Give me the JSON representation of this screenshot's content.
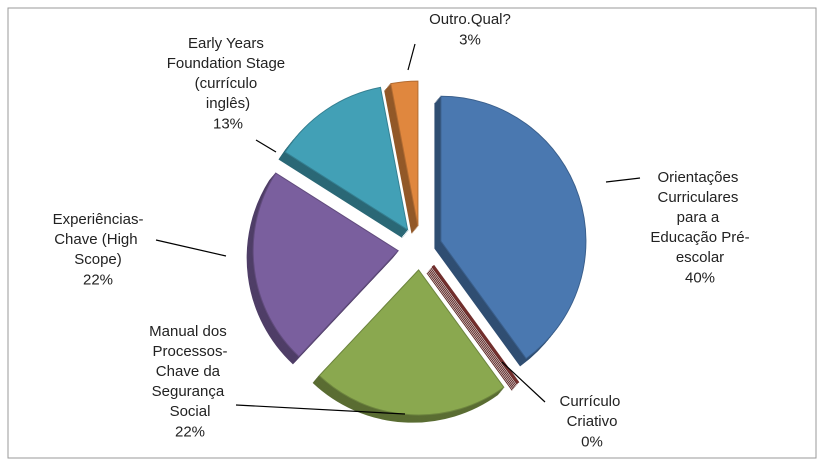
{
  "chart_data": {
    "type": "pie",
    "categories": [
      "Orientações Curriculares para a Educação Pré-escolar",
      "Currículo Criativo",
      "Manual dos Processos-Chave da Segurança Social",
      "Experiências-Chave (High Scope)",
      "Early Years Foundation Stage (currículo inglês)",
      "Outro.Qual?"
    ],
    "values": [
      40,
      0,
      22,
      22,
      13,
      3
    ],
    "value_labels": [
      "40%",
      "0%",
      "22%",
      "22%",
      "13%",
      "3%"
    ],
    "colors": [
      "#4a78b0",
      "#8e3b38",
      "#8aa84f",
      "#7a5f9e",
      "#42a0b6",
      "#e0873e"
    ]
  }
}
